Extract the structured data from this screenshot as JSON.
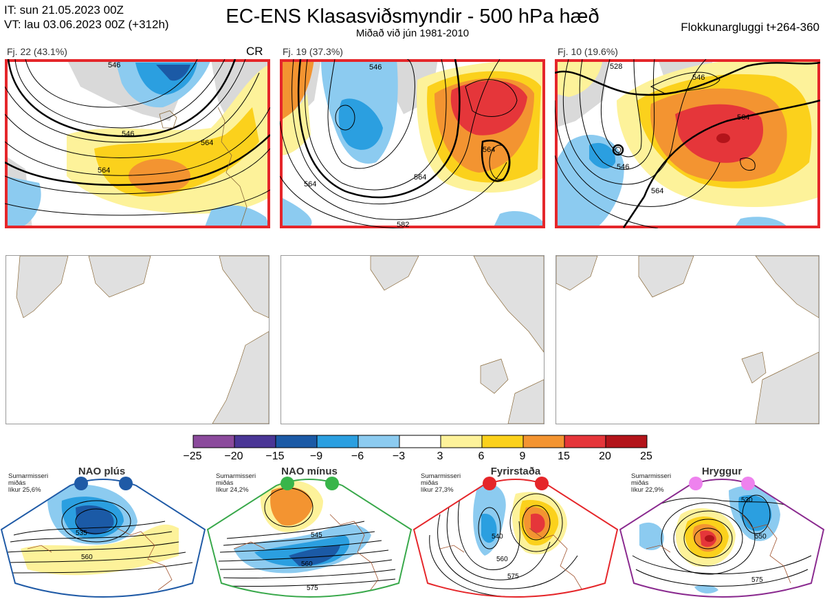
{
  "header": {
    "init_time": "IT: sun 21.05.2023 00Z",
    "valid_time": "VT: lau 03.06.2023 00Z  (+312h)",
    "title": "EC-ENS Klasasviðsmyndir - 500 hPa hæð",
    "subtitle": "Miðað við jún 1981-2010",
    "window": "Flokkunargluggi t+264-360"
  },
  "clusters": [
    {
      "label": "Fj. 22 (43.1%)",
      "tag": "CR",
      "contours": [
        "546",
        "564",
        "564",
        "546"
      ]
    },
    {
      "label": "Fj. 19 (37.3%)",
      "tag": "",
      "contours": [
        "546",
        "564",
        "564",
        "564",
        "582"
      ]
    },
    {
      "label": "Fj. 10 (19.6%)",
      "tag": "",
      "contours": [
        "528",
        "546",
        "564",
        "546",
        "564"
      ]
    }
  ],
  "colorbar": {
    "ticks": [
      "−25",
      "−20",
      "−15",
      "−9",
      "−6",
      "−3",
      "3",
      "6",
      "9",
      "15",
      "20",
      "25"
    ],
    "colors": [
      "#8b4a9c",
      "#4a3696",
      "#1b5aa6",
      "#2b9fe0",
      "#8ccbf0",
      "#ffffff",
      "#fdf29a",
      "#fbd11c",
      "#f39431",
      "#e5363a",
      "#b3141a"
    ]
  },
  "regimes": [
    {
      "name": "NAO plús",
      "note": [
        "Sumarmisseri",
        "miðás",
        "líkur 25,6%"
      ],
      "border": "#1f5aa6",
      "dot": "#1f5aa6",
      "contours": [
        "535",
        "560"
      ]
    },
    {
      "name": "NAO mínus",
      "note": [
        "Sumarmisseri",
        "miðás",
        "líkur 24,2%"
      ],
      "border": "#38a84a",
      "dot": "#38b54a",
      "contours": [
        "545",
        "560",
        "575"
      ]
    },
    {
      "name": "Fyrirstaða",
      "note": [
        "Sumarmisseri",
        "miðás",
        "líkur 27,3%"
      ],
      "border": "#e5262a",
      "dot": "#e5262a",
      "contours": [
        "540",
        "560",
        "575"
      ]
    },
    {
      "name": "Hryggur",
      "note": [
        "Sumarmisseri",
        "miðás",
        "líkur 22,9%"
      ],
      "border": "#8a2a8f",
      "dot": "#ee82ee",
      "contours": [
        "530",
        "550",
        "575"
      ]
    }
  ]
}
